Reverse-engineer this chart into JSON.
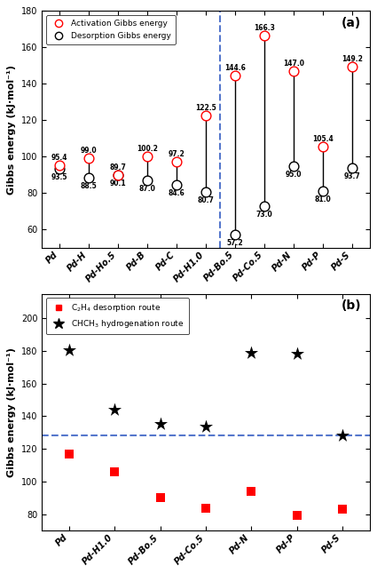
{
  "panel_a": {
    "categories": [
      "Pd",
      "Pd-H",
      "Pd-Ho.5",
      "Pd-B",
      "Pd-C",
      "Pd-H1.0",
      "Pd-Bo.5",
      "Pd-Co.5",
      "Pd-N",
      "Pd-P",
      "Pd-S"
    ],
    "activation": [
      95.4,
      99.0,
      89.7,
      100.2,
      97.2,
      122.5,
      144.6,
      166.3,
      147.0,
      105.4,
      149.2
    ],
    "desorption": [
      93.5,
      88.5,
      90.1,
      87.0,
      84.6,
      80.7,
      57.2,
      73.0,
      95.0,
      81.0,
      93.7
    ],
    "dashed_line_x": 5.5,
    "ylim": [
      50,
      180
    ],
    "yticks": [
      60,
      80,
      100,
      120,
      140,
      160,
      180
    ],
    "ylabel": "Gibbs energy (kJ·mol⁻¹)",
    "panel_label": "(a)",
    "act_label_offsets": [
      2.0,
      2.0,
      2.0,
      2.0,
      2.0,
      2.0,
      2.0,
      2.0,
      2.0,
      2.0,
      2.0
    ],
    "des_label_offsets": [
      -2.5,
      -2.5,
      -2.5,
      -2.5,
      -2.5,
      -2.5,
      -2.5,
      -2.5,
      -2.5,
      -2.5,
      -2.5
    ]
  },
  "panel_b": {
    "categories": [
      "Pd",
      "Pd-H1.0",
      "Pd-Bo.5",
      "Pd-Co.5",
      "Pd-N",
      "Pd-P",
      "Pd-S"
    ],
    "desorption_route": [
      117.0,
      106.0,
      90.0,
      83.5,
      94.0,
      79.5,
      83.0
    ],
    "hydrogenation_route": [
      180.5,
      144.0,
      135.5,
      133.5,
      179.0,
      178.5,
      128.5
    ],
    "hline_y": 128.0,
    "ylim": [
      70,
      215
    ],
    "yticks": [
      80,
      100,
      120,
      140,
      160,
      180,
      200
    ],
    "ylabel": "Gibbs energy (kJ·mol⁻¹)",
    "panel_label": "(b)"
  },
  "bg_color": "#ffffff",
  "spine_color": "#000000",
  "blue_dash": "#5577cc"
}
